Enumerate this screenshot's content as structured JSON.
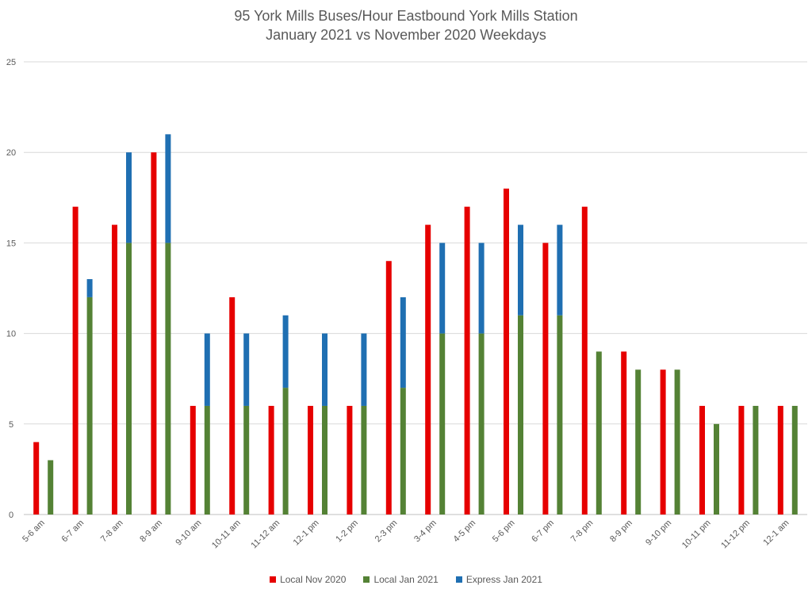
{
  "chart_data": {
    "type": "bar",
    "title": "95 York Mills Buses/Hour Eastbound York Mills Station",
    "subtitle": "January 2021 vs November 2020 Weekdays",
    "xlabel": "",
    "ylabel": "",
    "ylim": [
      0,
      25
    ],
    "yticks": [
      0,
      5,
      10,
      15,
      20,
      25
    ],
    "grid": true,
    "legend_position": "bottom",
    "categories": [
      "5-6 am",
      "6-7 am",
      "7-8 am",
      "8-9 am",
      "9-10 am",
      "10-11 am",
      "11-12 am",
      "12-1 pm",
      "1-2 pm",
      "2-3 pm",
      "3-4 pm",
      "4-5 pm",
      "5-6 pm",
      "6-7 pm",
      "7-8 pm",
      "8-9 pm",
      "9-10 pm",
      "10-11 pm",
      "11-12 pm",
      "12-1 am"
    ],
    "series": [
      {
        "name": "Local Nov 2020",
        "color": "#e60000",
        "stack": "nov",
        "values": [
          4,
          17,
          16,
          20,
          6,
          12,
          6,
          6,
          6,
          14,
          16,
          17,
          18,
          15,
          17,
          9,
          8,
          6,
          6,
          6
        ]
      },
      {
        "name": "Local Jan 2021",
        "color": "#548235",
        "stack": "jan",
        "values": [
          3,
          12,
          15,
          15,
          6,
          6,
          7,
          6,
          6,
          7,
          10,
          10,
          11,
          11,
          9,
          8,
          8,
          5,
          6,
          6
        ]
      },
      {
        "name": "Express Jan 2021",
        "color": "#1f6fb2",
        "stack": "jan",
        "values": [
          0,
          1,
          5,
          6,
          4,
          4,
          4,
          4,
          4,
          5,
          5,
          5,
          5,
          5,
          0,
          0,
          0,
          0,
          0,
          0
        ]
      }
    ]
  }
}
